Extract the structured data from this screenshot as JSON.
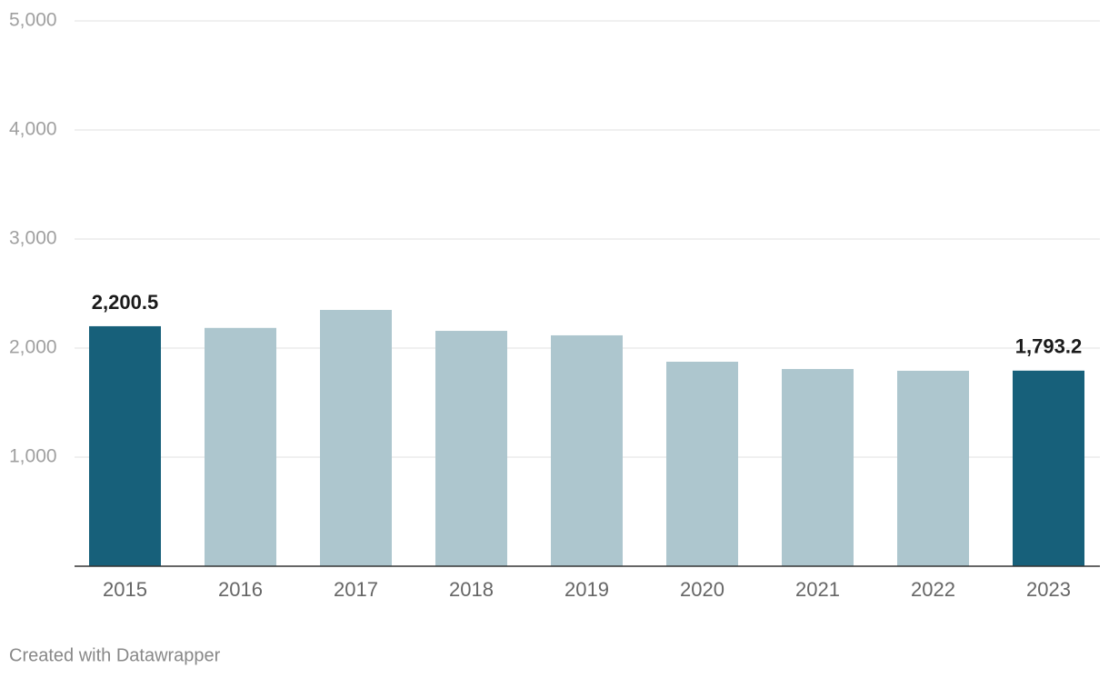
{
  "chart_data": {
    "type": "bar",
    "categories": [
      "2015",
      "2016",
      "2017",
      "2018",
      "2019",
      "2020",
      "2021",
      "2022",
      "2023"
    ],
    "values": [
      2200.5,
      2185,
      2350,
      2158,
      2117,
      1875,
      1808,
      1792,
      1793.2
    ],
    "value_labels": [
      "2,200.5",
      null,
      null,
      null,
      null,
      null,
      null,
      null,
      "1,793.2"
    ],
    "colors": [
      "#17607a",
      "#adc6ce",
      "#adc6ce",
      "#adc6ce",
      "#adc6ce",
      "#adc6ce",
      "#adc6ce",
      "#adc6ce",
      "#17607a"
    ],
    "ylim": [
      0,
      5000
    ],
    "yticks": [
      {
        "value": 1000,
        "label": "1,000"
      },
      {
        "value": 2000,
        "label": "2,000"
      },
      {
        "value": 3000,
        "label": "3,000"
      },
      {
        "value": 4000,
        "label": "4,000"
      },
      {
        "value": 5000,
        "label": "5,000"
      }
    ],
    "grid": true,
    "footer": "Created with Datawrapper"
  }
}
